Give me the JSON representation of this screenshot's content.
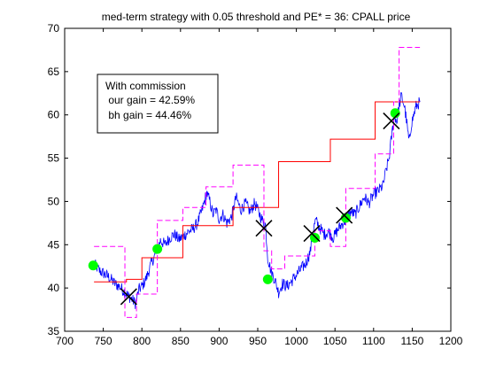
{
  "chart_data": {
    "type": "line",
    "title": "med-term strategy with 0.05 threshold  and PE* = 36: CPALL price",
    "xlabel": "",
    "ylabel": "",
    "xlim": [
      700,
      1200
    ],
    "ylim": [
      35,
      70
    ],
    "x_ticks": [
      700,
      750,
      800,
      850,
      900,
      950,
      1000,
      1050,
      1100,
      1150,
      1200
    ],
    "y_ticks": [
      35,
      40,
      45,
      50,
      55,
      60,
      65,
      70
    ],
    "grid": false,
    "annotation_lines": [
      "With commission",
      " our gain = 42.59%",
      " bh gain = 44.46%"
    ],
    "colors": {
      "price": "#0000ff",
      "step": "#ff0000",
      "band": "#ff00ff",
      "buy": "#00ff00",
      "sell": "#000000"
    },
    "price_anchors": [
      [
        738,
        42.8
      ],
      [
        745,
        42.0
      ],
      [
        752,
        41.6
      ],
      [
        758,
        41.2
      ],
      [
        765,
        40.5
      ],
      [
        772,
        40.1
      ],
      [
        780,
        39.3
      ],
      [
        786,
        38.8
      ],
      [
        792,
        38.2
      ],
      [
        796,
        39.8
      ],
      [
        801,
        40.3
      ],
      [
        806,
        41.2
      ],
      [
        812,
        42.8
      ],
      [
        818,
        44.0
      ],
      [
        824,
        45.5
      ],
      [
        830,
        45.0
      ],
      [
        836,
        45.8
      ],
      [
        842,
        46.2
      ],
      [
        848,
        45.6
      ],
      [
        854,
        46.0
      ],
      [
        860,
        46.5
      ],
      [
        866,
        46.8
      ],
      [
        872,
        47.5
      ],
      [
        878,
        49.0
      ],
      [
        884,
        51.0
      ],
      [
        888,
        50.0
      ],
      [
        892,
        48.5
      ],
      [
        896,
        49.0
      ],
      [
        900,
        48.0
      ],
      [
        905,
        48.5
      ],
      [
        910,
        47.5
      ],
      [
        916,
        48.2
      ],
      [
        922,
        50.5
      ],
      [
        928,
        49.0
      ],
      [
        934,
        49.8
      ],
      [
        940,
        48.8
      ],
      [
        946,
        49.8
      ],
      [
        951,
        48.8
      ],
      [
        956,
        47.8
      ],
      [
        960,
        47.3
      ],
      [
        963,
        43.5
      ],
      [
        967,
        42.0
      ],
      [
        972,
        41.0
      ],
      [
        977,
        39.5
      ],
      [
        982,
        40.5
      ],
      [
        988,
        40.2
      ],
      [
        994,
        40.8
      ],
      [
        1000,
        41.5
      ],
      [
        1006,
        42.2
      ],
      [
        1012,
        42.8
      ],
      [
        1018,
        44.2
      ],
      [
        1022,
        46.8
      ],
      [
        1025,
        47.8
      ],
      [
        1030,
        47.0
      ],
      [
        1036,
        46.2
      ],
      [
        1042,
        46.5
      ],
      [
        1048,
        45.8
      ],
      [
        1054,
        46.8
      ],
      [
        1060,
        47.5
      ],
      [
        1064,
        47.8
      ],
      [
        1070,
        48.8
      ],
      [
        1076,
        48.5
      ],
      [
        1082,
        49.5
      ],
      [
        1088,
        50.5
      ],
      [
        1094,
        49.8
      ],
      [
        1100,
        50.8
      ],
      [
        1106,
        51.2
      ],
      [
        1112,
        51.8
      ],
      [
        1116,
        53.5
      ],
      [
        1120,
        55.0
      ],
      [
        1124,
        58.0
      ],
      [
        1127,
        60.0
      ],
      [
        1130,
        59.2
      ],
      [
        1133,
        61.0
      ],
      [
        1136,
        62.2
      ],
      [
        1140,
        61.0
      ],
      [
        1143,
        59.0
      ],
      [
        1146,
        56.8
      ],
      [
        1149,
        59.0
      ],
      [
        1152,
        60.0
      ],
      [
        1155,
        61.0
      ],
      [
        1160,
        61.5
      ]
    ],
    "series": [
      {
        "name": "",
        "type": "step",
        "color": "red",
        "points": [
          [
            738,
            40.7
          ],
          [
            780,
            40.7
          ],
          [
            780,
            41.0
          ],
          [
            800,
            41.0
          ],
          [
            800,
            43.5
          ],
          [
            853,
            43.5
          ],
          [
            853,
            47.2
          ],
          [
            918,
            47.2
          ],
          [
            918,
            49.3
          ],
          [
            977,
            49.3
          ],
          [
            977,
            54.6
          ],
          [
            1044,
            54.6
          ],
          [
            1044,
            57.2
          ],
          [
            1102,
            57.2
          ],
          [
            1102,
            61.5
          ],
          [
            1160,
            61.5
          ]
        ]
      },
      {
        "name": "",
        "type": "step-dashed",
        "color": "magenta",
        "points": [
          [
            738,
            44.8
          ],
          [
            778,
            44.8
          ],
          [
            778,
            36.6
          ],
          [
            793,
            36.6
          ],
          [
            793,
            39.3
          ],
          [
            820,
            39.3
          ],
          [
            820,
            47.8
          ],
          [
            853,
            47.8
          ],
          [
            853,
            49.3
          ],
          [
            883,
            49.3
          ],
          [
            883,
            51.7
          ],
          [
            918,
            51.7
          ],
          [
            918,
            54.2
          ],
          [
            958,
            54.2
          ],
          [
            958,
            44.3
          ],
          [
            968,
            44.3
          ],
          [
            968,
            42.2
          ],
          [
            985,
            42.2
          ],
          [
            985,
            43.7
          ],
          [
            1024,
            43.7
          ],
          [
            1024,
            46.6
          ],
          [
            1044,
            46.6
          ],
          [
            1044,
            44.8
          ],
          [
            1064,
            44.8
          ],
          [
            1064,
            51.5
          ],
          [
            1102,
            51.5
          ],
          [
            1102,
            55.5
          ],
          [
            1126,
            55.5
          ],
          [
            1126,
            61.5
          ],
          [
            1133,
            61.5
          ],
          [
            1133,
            67.8
          ],
          [
            1160,
            67.8
          ]
        ]
      }
    ],
    "buy_points": [
      [
        737,
        42.6
      ],
      [
        820,
        44.5
      ],
      [
        963,
        41.0
      ],
      [
        1024,
        45.8
      ],
      [
        1064,
        48.1
      ],
      [
        1128,
        60.2
      ]
    ],
    "sell_points": [
      [
        783,
        39.0
      ],
      [
        958,
        46.9
      ],
      [
        1020,
        46.3
      ],
      [
        1062,
        48.4
      ],
      [
        1123,
        59.3
      ]
    ]
  }
}
